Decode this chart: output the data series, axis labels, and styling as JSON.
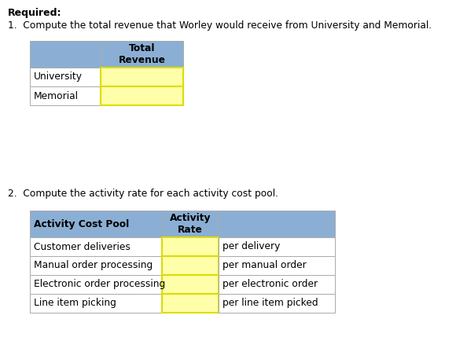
{
  "required_label": "Required:",
  "q1_text": "1.  Compute the total revenue that Worley would receive from University and Memorial.",
  "q2_text": "2.  Compute the activity rate for each activity cost pool.",
  "table1_header_col0": "",
  "table1_header_col1": "Total\nRevenue",
  "table1_rows": [
    "University",
    "Memorial"
  ],
  "table2_header": [
    "Activity Cost Pool",
    "Activity\nRate",
    ""
  ],
  "table2_rows": [
    [
      "Customer deliveries",
      "",
      "per delivery"
    ],
    [
      "Manual order processing",
      "",
      "per manual order"
    ],
    [
      "Electronic order processing",
      "",
      "per electronic order"
    ],
    [
      "Line item picking",
      "",
      "per line item picked"
    ]
  ],
  "header_bg": "#8BAFD4",
  "input_cell_bg": "#FFFFAA",
  "input_border": "#DDDD00",
  "normal_bg": "#FFFFFF",
  "cell_border": "#AAAAAA",
  "text_color": "#000000",
  "bg_color": "#FFFFFF",
  "fig_w": 5.8,
  "fig_h": 4.48,
  "dpi": 100
}
